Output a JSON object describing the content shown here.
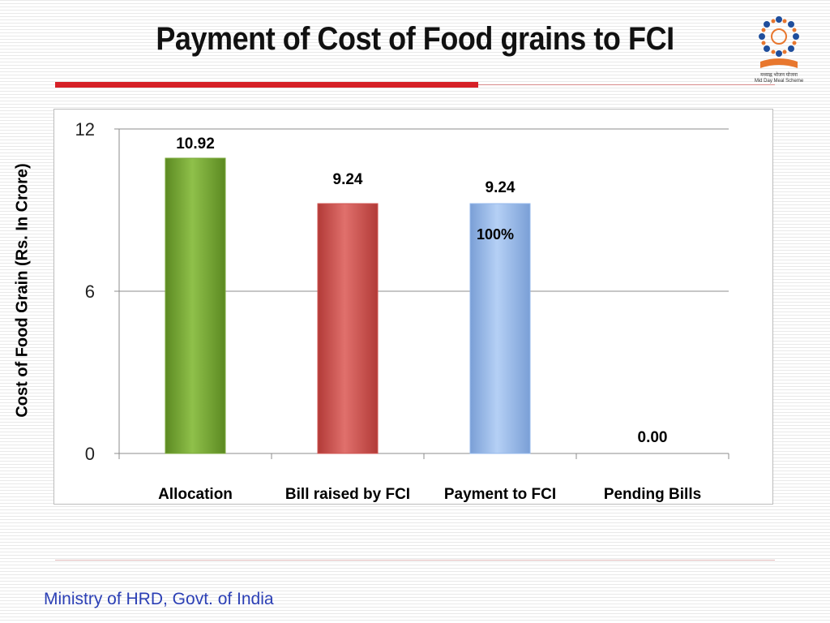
{
  "slide": {
    "title": "Payment of Cost of Food grains to FCI",
    "footer": "Ministry of HRD, Govt. of India",
    "logo_caption_line1": "मध्याह्न भोजन योजना",
    "logo_caption_line2": "Mid Day Meal Scheme"
  },
  "colors": {
    "title_rule": "#d62027",
    "footer_text": "#2b3fb5",
    "bar_allocation": "#7aa83a",
    "bar_bill": "#cf5451",
    "bar_payment": "#94b8ec",
    "gridline": "#8c8c8c"
  },
  "chart_data": {
    "type": "bar",
    "title": "",
    "xlabel": "",
    "ylabel": "Cost of Food Grain (Rs. In Crore)",
    "categories": [
      "Allocation",
      "Bill raised by FCI",
      "Payment to FCI",
      "Pending Bills"
    ],
    "values": [
      10.92,
      9.24,
      9.24,
      0.0
    ],
    "value_labels": [
      "10.92",
      "9.24",
      "9.24",
      "0.00"
    ],
    "bar_colors": [
      "#7aa83a",
      "#cf5451",
      "#94b8ec",
      "#cccccc"
    ],
    "ylim": [
      0,
      12
    ],
    "yticks": [
      0,
      6,
      12
    ],
    "grid": true,
    "legend": "none",
    "annotations": [
      {
        "category": "Payment to FCI",
        "text": "100%"
      }
    ]
  }
}
